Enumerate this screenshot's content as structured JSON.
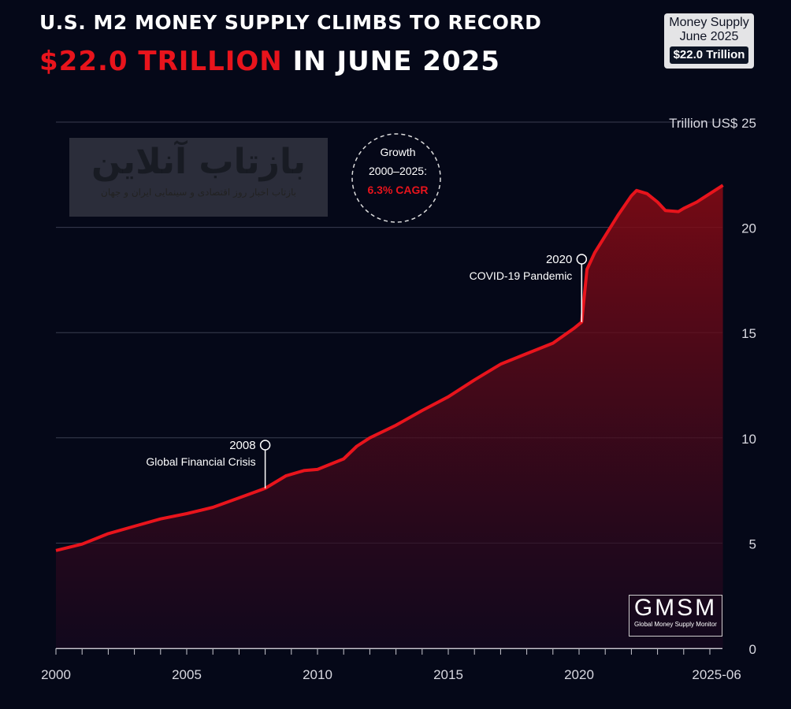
{
  "title": {
    "line1": "U.S. M2 MONEY SUPPLY CLIMBS TO RECORD",
    "highlight": "$22.0 TRILLION",
    "rest": " IN JUNE 2025"
  },
  "badge": {
    "line1": "Money Supply",
    "line2": "June 2025",
    "value": "$22.0 Trillion"
  },
  "logo": {
    "name": "GMSM",
    "subtitle": "Global Money Supply Monitor"
  },
  "watermark": {
    "main": "بازتاب آنلاین",
    "sub": "بازتاب اخبار روز اقتصادی و سینمایی ایران و جهان"
  },
  "colors": {
    "line": "#e8141c",
    "background": "#050818"
  },
  "chart_data": {
    "type": "area",
    "title": "U.S. M2 Money Supply",
    "ylabel": "Trillion US$",
    "ylim": [
      0,
      25
    ],
    "xlim": [
      2000,
      2025.5
    ],
    "yticks": [
      0,
      5,
      10,
      15,
      20,
      25
    ],
    "xtick_labels": [
      {
        "x": 2000,
        "label": "2000"
      },
      {
        "x": 2005,
        "label": "2005"
      },
      {
        "x": 2010,
        "label": "2010"
      },
      {
        "x": 2015,
        "label": "2015"
      },
      {
        "x": 2020,
        "label": "2020"
      },
      {
        "x": 2025.5,
        "label": "2025-06"
      }
    ],
    "grid": true,
    "x": [
      2000,
      2001,
      2002,
      2003,
      2004,
      2005,
      2006,
      2007,
      2008,
      2008.8,
      2009.5,
      2010,
      2011,
      2011.5,
      2012,
      2013,
      2014,
      2015,
      2016,
      2017,
      2018,
      2019,
      2019.8,
      2020.1,
      2020.3,
      2020.6,
      2021,
      2021.5,
      2022,
      2022.2,
      2022.6,
      2023,
      2023.3,
      2023.8,
      2024,
      2024.5,
      2025,
      2025.5
    ],
    "y": [
      4.65,
      4.95,
      5.45,
      5.8,
      6.15,
      6.4,
      6.7,
      7.15,
      7.6,
      8.2,
      8.45,
      8.5,
      9.0,
      9.6,
      10.0,
      10.6,
      11.3,
      11.95,
      12.75,
      13.5,
      14.0,
      14.5,
      15.2,
      15.5,
      18.0,
      18.8,
      19.6,
      20.6,
      21.5,
      21.75,
      21.6,
      21.2,
      20.8,
      20.75,
      20.9,
      21.2,
      21.6,
      22.0
    ],
    "annotations": [
      {
        "x": 2008,
        "y": 7.6,
        "year": "2008",
        "label": "Global Financial Crisis"
      },
      {
        "x": 2020.1,
        "y": 15.5,
        "year": "2020",
        "label": "COVID-19 Pandemic"
      }
    ],
    "growth_callout": {
      "line1": "Growth",
      "line2": "2000–2025:",
      "value": "6.3% CAGR"
    }
  }
}
